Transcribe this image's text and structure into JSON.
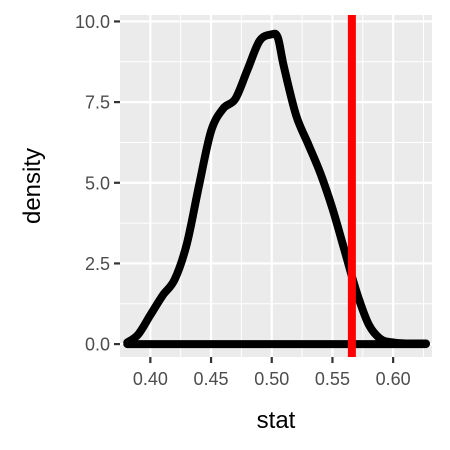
{
  "chart_data": {
    "type": "line",
    "xlabel": "stat",
    "ylabel": "density",
    "xlim": [
      0.375,
      0.632
    ],
    "ylim": [
      -0.4,
      10.2
    ],
    "x_ticks": [
      0.4,
      0.45,
      0.5,
      0.55,
      0.6
    ],
    "x_tick_labels": [
      "0.40",
      "0.45",
      "0.50",
      "0.55",
      "0.60"
    ],
    "y_ticks": [
      0.0,
      2.5,
      5.0,
      7.5,
      10.0
    ],
    "y_tick_labels": [
      "0.0",
      "2.5",
      "5.0",
      "7.5",
      "10.0"
    ],
    "grid": true,
    "series": [
      {
        "color": "#000000",
        "x": [
          0.381,
          0.39,
          0.4,
          0.41,
          0.42,
          0.43,
          0.44,
          0.45,
          0.46,
          0.47,
          0.48,
          0.49,
          0.5,
          0.505,
          0.51,
          0.52,
          0.53,
          0.54,
          0.55,
          0.56,
          0.57,
          0.58,
          0.59,
          0.6,
          0.61,
          0.627
        ],
        "y": [
          0.05,
          0.3,
          0.9,
          1.5,
          2.0,
          3.1,
          4.9,
          6.6,
          7.3,
          7.6,
          8.5,
          9.4,
          9.6,
          9.5,
          8.6,
          7.1,
          6.2,
          5.3,
          4.2,
          2.9,
          1.6,
          0.6,
          0.15,
          0.05,
          0.02,
          0.02
        ]
      }
    ],
    "reference_line": {
      "x": 0.566,
      "color": "#ff0000"
    },
    "baseline_range": [
      0.381,
      0.627
    ]
  }
}
